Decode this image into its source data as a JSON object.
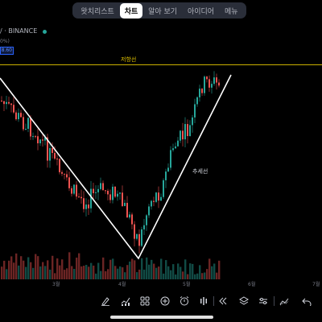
{
  "tabs": [
    "왓치리스트",
    "차트",
    "알아 보기",
    "아이디어",
    "메뉴"
  ],
  "active_tab": 1,
  "symbol": "/ · BINANCE",
  "pct_text": "0%)",
  "price_box": "8.60",
  "annotations": {
    "resistance": "저항선",
    "trendline": "추세선"
  },
  "xaxis": [
    "3월",
    "4월",
    "5월",
    "6월",
    "7월"
  ],
  "toolbar_icons": [
    "brush-icon",
    "indicators-icon",
    "templates-icon",
    "add-icon",
    "alert-icon",
    "replay-icon",
    "rewind-icon",
    "layers-icon",
    "settings-sliders-icon",
    "drawing-icon",
    "undo-icon"
  ],
  "colors": {
    "up": "#26a69a",
    "down": "#ef5350",
    "resistance": "#c9b000",
    "trendline": "#ffffff",
    "accent": "#2962ff"
  }
}
